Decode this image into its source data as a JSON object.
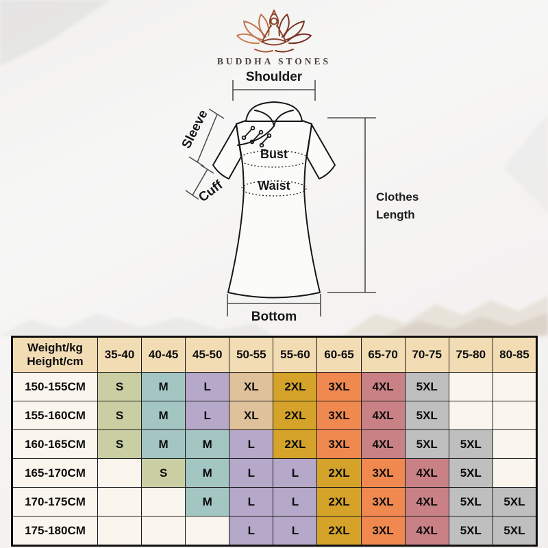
{
  "brand": {
    "name": "BUDDHA STONES",
    "logo_icon": "lotus-meditation-icon",
    "logo_colors": {
      "left_petals": "#c0714a",
      "right_petals": "#7d3526",
      "figure": "#8f4630",
      "text": "#49423b"
    }
  },
  "diagram": {
    "shoulder": "Shoulder",
    "sleeve": "Sleeve",
    "cuff": "Cuff",
    "bust": "Bust",
    "waist": "Waist",
    "clothes_length_line1": "Clothes",
    "clothes_length_line2": "Length",
    "bottom": "Bottom"
  },
  "size_chart": {
    "corner_line1": "Weight/kg",
    "corner_line2": "Height/cm",
    "weight_columns": [
      "35-40",
      "40-45",
      "45-50",
      "50-55",
      "55-60",
      "60-65",
      "65-70",
      "70-75",
      "75-80",
      "80-85"
    ],
    "rows": [
      {
        "height": "150-155CM",
        "sizes": [
          "S",
          "M",
          "L",
          "XL",
          "2XL",
          "3XL",
          "4XL",
          "5XL",
          "",
          ""
        ]
      },
      {
        "height": "155-160CM",
        "sizes": [
          "S",
          "M",
          "L",
          "XL",
          "2XL",
          "3XL",
          "4XL",
          "5XL",
          "",
          ""
        ]
      },
      {
        "height": "160-165CM",
        "sizes": [
          "S",
          "M",
          "M",
          "L",
          "2XL",
          "3XL",
          "4XL",
          "5XL",
          "5XL",
          ""
        ]
      },
      {
        "height": "165-170CM",
        "sizes": [
          "",
          "S",
          "M",
          "L",
          "L",
          "2XL",
          "3XL",
          "4XL",
          "5XL",
          ""
        ]
      },
      {
        "height": "170-175CM",
        "sizes": [
          "",
          "",
          "M",
          "L",
          "L",
          "2XL",
          "3XL",
          "4XL",
          "5XL",
          "5XL"
        ]
      },
      {
        "height": "175-180CM",
        "sizes": [
          "",
          "",
          "",
          "L",
          "L",
          "2XL",
          "3XL",
          "4XL",
          "5XL",
          "5XL"
        ]
      }
    ],
    "size_colors": {
      "S": "#c9cfa2",
      "M": "#a3c6c3",
      "L": "#b5a8c9",
      "XL": "#dfc19b",
      "2XL": "#d5a32a",
      "3XL": "#f08950",
      "4XL": "#ca8185",
      "5XL": "#c0bfbf"
    },
    "header_bg": "#f2dcb4",
    "label_bg": "#faf6ee",
    "border_color": "#1a1a1a"
  }
}
